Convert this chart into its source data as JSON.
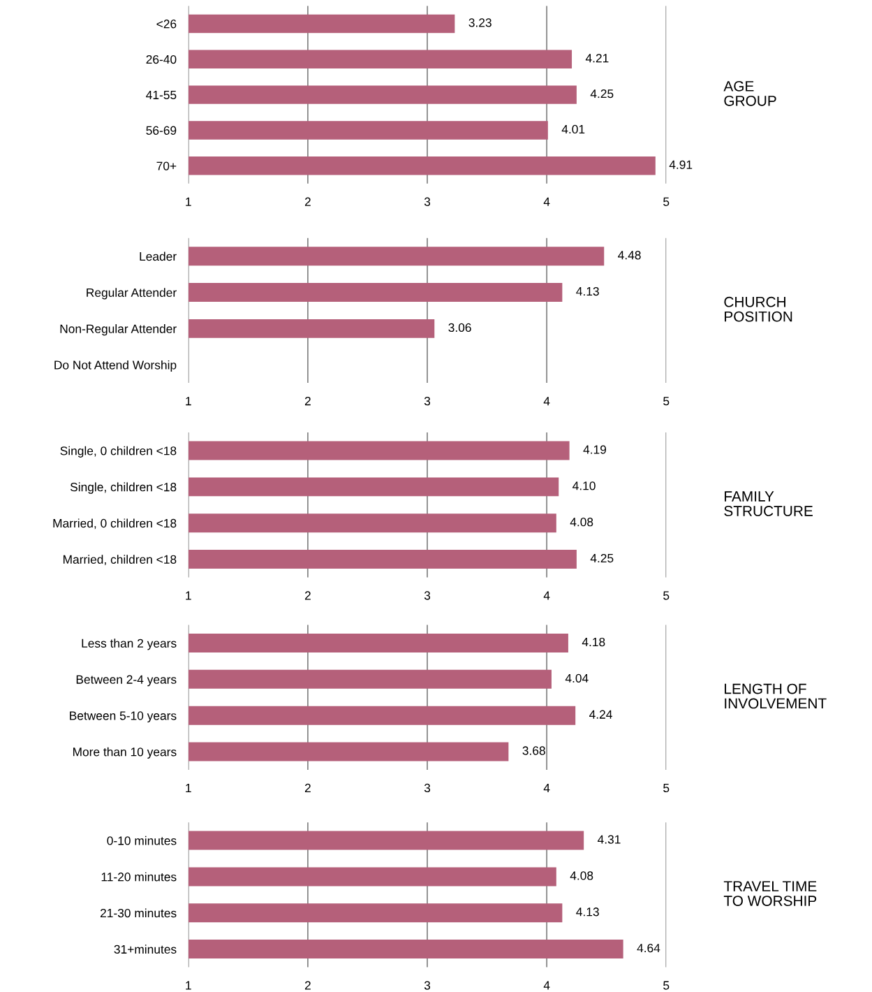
{
  "chart_data": [
    {
      "type": "bar",
      "orientation": "horizontal",
      "ylabel": "AGE GROUP",
      "categories": [
        "<26",
        "26-40",
        "41-55",
        "56-69",
        "70+"
      ],
      "values": [
        3.23,
        4.21,
        4.25,
        4.01,
        4.91
      ],
      "color": "#b5607a",
      "xlim": [
        1,
        5
      ],
      "xticks": [
        1,
        2,
        3,
        4,
        5
      ],
      "grid": "x",
      "data_labels": true
    },
    {
      "type": "bar",
      "orientation": "horizontal",
      "ylabel": "CHURCH POSITION",
      "categories": [
        "Leader",
        "Regular Attender",
        "Non-Regular Attender",
        "Do Not Attend Worship"
      ],
      "values": [
        4.48,
        4.13,
        3.06,
        null
      ],
      "color": "#b5607a",
      "xlim": [
        1,
        5
      ],
      "xticks": [
        1,
        2,
        3,
        4,
        5
      ],
      "grid": "x",
      "data_labels": true
    },
    {
      "type": "bar",
      "orientation": "horizontal",
      "ylabel": "FAMILY STRUCTURE",
      "categories": [
        "Single, 0 children <18",
        "Single, children <18",
        "Married, 0 children <18",
        "Married, children <18"
      ],
      "values": [
        4.19,
        4.1,
        4.08,
        4.25
      ],
      "value_labels": [
        "4.19",
        "4.10",
        "4.08",
        "4.25"
      ],
      "color": "#b5607a",
      "xlim": [
        1,
        5
      ],
      "xticks": [
        1,
        2,
        3,
        4,
        5
      ],
      "grid": "x",
      "data_labels": true
    },
    {
      "type": "bar",
      "orientation": "horizontal",
      "ylabel": "LENGTH OF INVOLVEMENT",
      "categories": [
        "Less than 2 years",
        "Between 2-4 years",
        "Between 5-10 years",
        "More than 10 years"
      ],
      "values": [
        4.18,
        4.04,
        4.24,
        3.68
      ],
      "color": "#b5607a",
      "xlim": [
        1,
        5
      ],
      "xticks": [
        1,
        2,
        3,
        4,
        5
      ],
      "grid": "x",
      "data_labels": true
    },
    {
      "type": "bar",
      "orientation": "horizontal",
      "ylabel": "TRAVEL TIME TO WORSHIP",
      "categories": [
        "0-10 minutes",
        "11-20 minutes",
        "21-30 minutes",
        "31+minutes"
      ],
      "values": [
        4.31,
        4.08,
        4.13,
        4.64
      ],
      "color": "#b5607a",
      "xlim": [
        1,
        5
      ],
      "xticks": [
        1,
        2,
        3,
        4,
        5
      ],
      "grid": "x",
      "data_labels": true
    }
  ]
}
